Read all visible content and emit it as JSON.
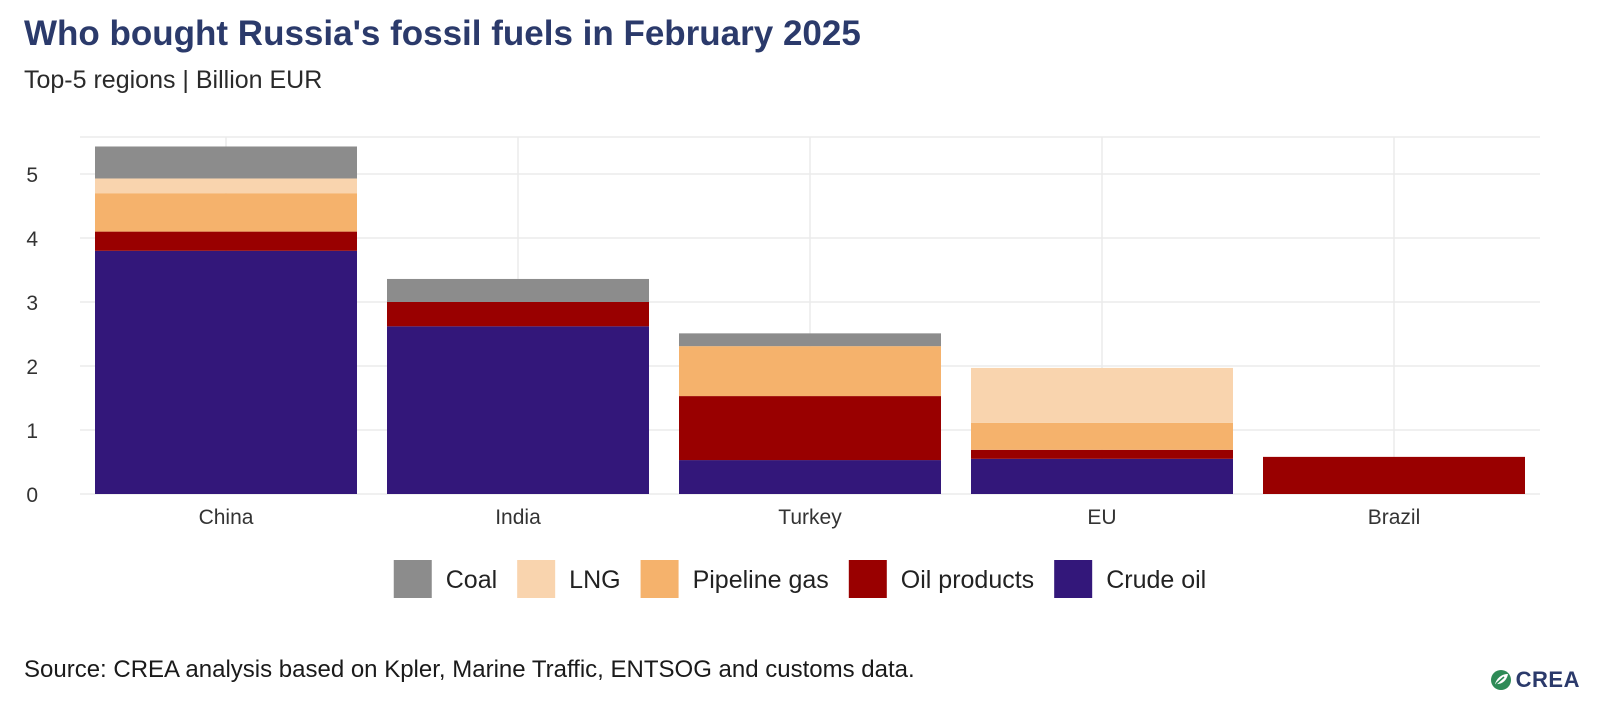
{
  "title": "Who bought Russia's fossil fuels in February 2025",
  "subtitle": "Top-5 regions | Billion EUR",
  "source": "Source: CREA analysis based on Kpler, Marine Traffic, ENTSOG and customs data.",
  "logo_text": "CREA",
  "chart_data": {
    "type": "bar",
    "stacked": true,
    "categories": [
      "China",
      "India",
      "Turkey",
      "EU",
      "Brazil"
    ],
    "series": [
      {
        "name": "Crude oil",
        "color": "#33177a",
        "values": [
          3.8,
          2.62,
          0.53,
          0.55,
          0.0
        ]
      },
      {
        "name": "Oil products",
        "color": "#990000",
        "values": [
          0.3,
          0.38,
          1.0,
          0.14,
          0.58
        ]
      },
      {
        "name": "Pipeline gas",
        "color": "#f5b26c",
        "values": [
          0.6,
          0.0,
          0.78,
          0.42,
          0.0
        ]
      },
      {
        "name": "LNG",
        "color": "#f9d4ae",
        "values": [
          0.23,
          0.0,
          0.0,
          0.86,
          0.0
        ]
      },
      {
        "name": "Coal",
        "color": "#8c8c8c",
        "values": [
          0.5,
          0.36,
          0.2,
          0.0,
          0.0
        ]
      }
    ],
    "legend_order": [
      "Coal",
      "LNG",
      "Pipeline gas",
      "Oil products",
      "Crude oil"
    ],
    "yticks": [
      "0",
      "1",
      "2",
      "3",
      "4",
      "5"
    ],
    "ylim": [
      0,
      5.6
    ],
    "xlabel": "",
    "ylabel": "",
    "grid": true,
    "legend_position": "bottom"
  }
}
